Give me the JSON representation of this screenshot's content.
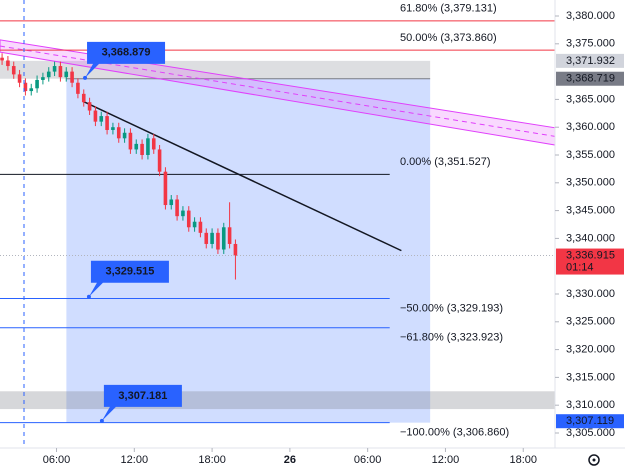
{
  "chart_data": {
    "type": "candlestick",
    "xlim": [
      1.64,
      44.45
    ],
    "ylim": [
      3302.3,
      3382.88
    ],
    "xticks": [
      {
        "value": 6,
        "label": "06:00"
      },
      {
        "value": 12,
        "label": "12:00"
      },
      {
        "value": 18,
        "label": "18:00"
      },
      {
        "value": 24,
        "label": "26"
      },
      {
        "value": 30,
        "label": "06:00"
      },
      {
        "value": 36,
        "label": "12:00"
      },
      {
        "value": 42,
        "label": "18:00"
      }
    ],
    "yticks": [
      {
        "value": 3380,
        "label": "3,380.000"
      },
      {
        "value": 3375,
        "label": "3,375.000"
      },
      {
        "value": 3365,
        "label": "3,365.000"
      },
      {
        "value": 3360,
        "label": "3,360.000"
      },
      {
        "value": 3355,
        "label": "3,355.000"
      },
      {
        "value": 3350,
        "label": "3,350.000"
      },
      {
        "value": 3345,
        "label": "3,345.000"
      },
      {
        "value": 3340,
        "label": "3,340.000"
      },
      {
        "value": 3330,
        "label": "3,330.000"
      },
      {
        "value": 3325,
        "label": "3,325.000"
      },
      {
        "value": 3320,
        "label": "3,320.000"
      },
      {
        "value": 3315,
        "label": "3,315.000"
      },
      {
        "value": 3310,
        "label": "3,310.000"
      },
      {
        "value": 3305,
        "label": "3,305.000"
      }
    ],
    "x": [
      1.8,
      2.25,
      2.7,
      3.15,
      3.6,
      4.05,
      4.5,
      4.95,
      5.4,
      5.85,
      6.3,
      6.75,
      7.2,
      7.65,
      8.1,
      8.55,
      9.0,
      9.45,
      9.9,
      10.35,
      10.8,
      11.25,
      11.7,
      12.15,
      12.6,
      13.05,
      13.5,
      13.95,
      14.4,
      14.85,
      15.3,
      15.75,
      16.2,
      16.65,
      17.1,
      17.55,
      18.0,
      18.45,
      18.9,
      19.35,
      19.8
    ],
    "open": [
      3372.5,
      3372,
      3371,
      3369.5,
      3368,
      3366.5,
      3367,
      3368.5,
      3369,
      3370,
      3371,
      3369,
      3370,
      3368,
      3366,
      3364.5,
      3363,
      3361,
      3362,
      3359.5,
      3360,
      3358,
      3359,
      3356,
      3357,
      3355,
      3358,
      3356,
      3352,
      3346,
      3347,
      3344,
      3345,
      3342,
      3343,
      3341,
      3339,
      3341,
      3338,
      3342,
      3339
    ],
    "high": [
      3373.3,
      3372.8,
      3371.8,
      3370.3,
      3368.8,
      3367.8,
      3369.3,
      3369.8,
      3370.8,
      3371.8,
      3371.8,
      3370.8,
      3370.8,
      3368.8,
      3366.8,
      3365.3,
      3363.8,
      3362.8,
      3362.8,
      3360.8,
      3360.8,
      3359.8,
      3359.8,
      3357.8,
      3357.8,
      3358.8,
      3358.8,
      3356.8,
      3352.8,
      3347.8,
      3347.8,
      3345.8,
      3345.8,
      3343.8,
      3343.8,
      3341.8,
      3341.8,
      3341.8,
      3342.8,
      3346.5,
      3339.8
    ],
    "low": [
      3371.2,
      3370.2,
      3368.7,
      3367.2,
      3365.7,
      3365.7,
      3366.2,
      3367.7,
      3368.2,
      3369.2,
      3368.2,
      3368.2,
      3367.2,
      3365.2,
      3363.7,
      3362.2,
      3360.2,
      3360.2,
      3358.7,
      3358.7,
      3357.2,
      3357.2,
      3355.2,
      3355.2,
      3354.2,
      3354.2,
      3355.2,
      3351.2,
      3345.2,
      3345.2,
      3343.2,
      3343.2,
      3341.2,
      3341.2,
      3340.2,
      3338.2,
      3338.2,
      3337.2,
      3337.2,
      3338.2,
      3332.6
    ],
    "close": [
      3372,
      3371,
      3369.5,
      3368,
      3366.5,
      3367,
      3368.5,
      3369,
      3370,
      3371,
      3369,
      3370,
      3368,
      3366,
      3364.5,
      3363,
      3361,
      3362,
      3359.5,
      3360,
      3358,
      3359,
      3356,
      3357,
      3355,
      3358,
      3356,
      3352,
      3346,
      3347,
      3344,
      3345,
      3342,
      3343,
      3341,
      3339,
      3341,
      3338,
      3342,
      3339,
      3336.9
    ],
    "up_color": "#089981",
    "down_color": "#f23645",
    "position": {
      "x": [
        6.76,
        34.82
      ],
      "top": 3371.932,
      "entry": 3368.719,
      "bottom": 3306.86
    },
    "band": [
      3309.3,
      3312.5
    ],
    "levels": [
      {
        "label": "61.80% (3,379.131)",
        "value": 3379.131,
        "color": "#f23645",
        "end": 44.45
      },
      {
        "label": "50.00% (3,373.860)",
        "value": 3373.86,
        "color": "#f23645",
        "end": 44.45
      },
      {
        "label": "0.00% (3,351.527)",
        "value": 3351.527,
        "color": "#131722",
        "end": 31.7
      },
      {
        "label": "−50.00% (3,329.193)",
        "value": 3329.193,
        "color": "#2962ff",
        "end": 31.7
      },
      {
        "label": "−61.80% (3,323.923)",
        "value": 3323.923,
        "color": "#2962ff",
        "end": 31.7
      },
      {
        "label": "−100.00% (3,306.860)",
        "value": 3306.86,
        "color": "#2962ff",
        "end": 31.7
      }
    ],
    "trend_line": {
      "x": [
        8.0,
        32.6
      ],
      "y": [
        3364.7,
        3337.8
      ]
    },
    "channel": {
      "x": [
        1.64,
        44.45
      ],
      "upper": [
        3375.7,
        3359.9
      ],
      "lower": [
        3373.5,
        3356.8
      ]
    },
    "callouts": [
      {
        "x": 8.2,
        "value": 3368.879,
        "label": "3,368.879"
      },
      {
        "x": 8.5,
        "value": 3329.515,
        "label": "3,329.515"
      },
      {
        "x": 9.5,
        "value": 3307.181,
        "label": "3,307.181"
      }
    ],
    "price_labels": [
      {
        "value": 3371.932,
        "label": "3,371.932",
        "color": "#d1d4dc"
      },
      {
        "value": 3368.719,
        "label": "3,368.719",
        "color": "#787b86"
      },
      {
        "value": 3336.915,
        "label": "3,336.915",
        "color": "#f23645",
        "countdown": "01:14"
      },
      {
        "value": 3307.119,
        "label": "3,307.119",
        "color": "#2962ff"
      }
    ]
  }
}
